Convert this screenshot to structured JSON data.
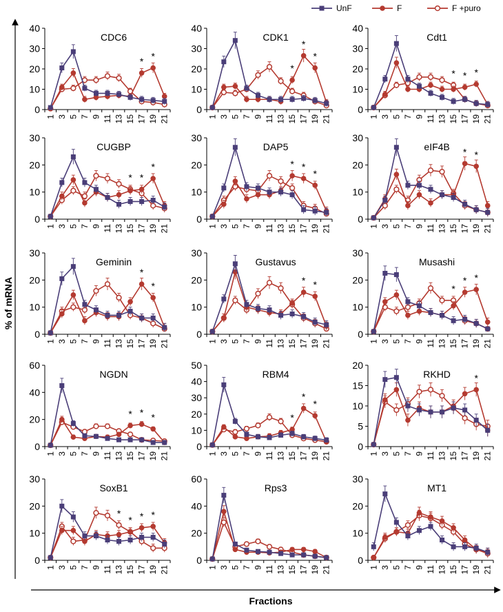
{
  "figure": {
    "ylabel": "% of mRNA",
    "xlabel": "Fractions",
    "legend": [
      {
        "name": "UnF",
        "marker": "square",
        "color": "#4a3e78"
      },
      {
        "name": "F",
        "marker": "circle-filled",
        "color": "#b43a30"
      },
      {
        "name": "F +puro",
        "marker": "circle-open",
        "color": "#b43a30"
      }
    ]
  },
  "chart_data": [
    {
      "type": "line",
      "title": "CDC6",
      "x": [
        1,
        3,
        5,
        7,
        9,
        11,
        13,
        15,
        17,
        19,
        21
      ],
      "ylim": [
        0,
        40
      ],
      "yticks": [
        0,
        10,
        20,
        30,
        40
      ],
      "series": [
        {
          "name": "UnF",
          "values": [
            1,
            20.5,
            28.5,
            10.5,
            8,
            8,
            7.5,
            6,
            5,
            4.5,
            4
          ]
        },
        {
          "name": "F",
          "values": [
            0.5,
            11,
            18,
            5,
            6,
            6.5,
            7,
            6.5,
            18,
            20.5,
            6.5
          ]
        },
        {
          "name": "F +puro",
          "values": [
            0.5,
            10,
            10.5,
            14.5,
            14.5,
            16.5,
            15.5,
            9,
            4,
            3.5,
            2.5
          ]
        }
      ],
      "asterisks": [
        17,
        19
      ]
    },
    {
      "type": "line",
      "title": "CDK1",
      "x": [
        1,
        3,
        5,
        7,
        9,
        11,
        13,
        15,
        17,
        19,
        21
      ],
      "ylim": [
        0,
        40
      ],
      "yticks": [
        0,
        10,
        20,
        30,
        40
      ],
      "series": [
        {
          "name": "UnF",
          "values": [
            1,
            23.5,
            34,
            10.5,
            7,
            5,
            5,
            5,
            5.5,
            4.5,
            3
          ]
        },
        {
          "name": "F",
          "values": [
            1,
            11,
            11.5,
            5,
            5,
            5,
            4,
            14.5,
            26.5,
            20.5,
            3.5
          ]
        },
        {
          "name": "F +puro",
          "values": [
            1,
            8.5,
            8,
            10,
            17,
            21,
            14,
            9,
            7,
            4,
            2
          ]
        }
      ],
      "asterisks": [
        15,
        17,
        19
      ]
    },
    {
      "type": "line",
      "title": "Cdt1",
      "x": [
        1,
        3,
        5,
        7,
        9,
        11,
        13,
        15,
        17,
        19,
        21
      ],
      "ylim": [
        0,
        40
      ],
      "yticks": [
        0,
        10,
        20,
        30,
        40
      ],
      "series": [
        {
          "name": "UnF",
          "values": [
            1,
            15,
            32.5,
            15,
            11.5,
            8,
            6,
            4,
            5,
            3,
            2.5
          ]
        },
        {
          "name": "F",
          "values": [
            1,
            7.5,
            23,
            10,
            10,
            12,
            10,
            10,
            11,
            12.5,
            2.5
          ]
        },
        {
          "name": "F +puro",
          "values": [
            1,
            7,
            12,
            13,
            16,
            16,
            14.5,
            12,
            5,
            3,
            2
          ]
        }
      ],
      "asterisks": [
        15,
        17,
        19
      ]
    },
    {
      "type": "line",
      "title": "CUGBP",
      "x": [
        1,
        3,
        5,
        7,
        9,
        11,
        13,
        15,
        17,
        19,
        21
      ],
      "ylim": [
        0,
        30
      ],
      "yticks": [
        0,
        10,
        20,
        30
      ],
      "series": [
        {
          "name": "UnF",
          "values": [
            1,
            13.5,
            23,
            13.5,
            11,
            8,
            5.5,
            6.5,
            6.5,
            7,
            4.5
          ]
        },
        {
          "name": "F",
          "values": [
            1,
            8.5,
            14.5,
            6,
            10,
            8,
            9,
            10.5,
            11,
            15,
            5
          ]
        },
        {
          "name": "F +puro",
          "values": [
            1,
            7,
            10.5,
            8.5,
            16,
            15,
            13,
            11,
            9.5,
            5,
            4
          ]
        }
      ],
      "asterisks": [
        15,
        17,
        19
      ]
    },
    {
      "type": "line",
      "title": "DAP5",
      "x": [
        1,
        3,
        5,
        7,
        9,
        11,
        13,
        15,
        17,
        19,
        21
      ],
      "ylim": [
        0,
        30
      ],
      "yticks": [
        0,
        10,
        20,
        30
      ],
      "series": [
        {
          "name": "UnF",
          "values": [
            1,
            11.5,
            26.5,
            12,
            11.5,
            10,
            10,
            9,
            3.5,
            3,
            2.5
          ]
        },
        {
          "name": "F",
          "values": [
            1,
            5.5,
            14,
            7.5,
            9,
            9,
            10.5,
            16,
            15,
            12.5,
            3
          ]
        },
        {
          "name": "F +puro",
          "values": [
            1,
            7,
            12,
            11,
            10.5,
            16,
            14,
            11.5,
            5,
            4,
            2
          ]
        }
      ],
      "asterisks": [
        15,
        17,
        19
      ]
    },
    {
      "type": "line",
      "title": "eIF4B",
      "x": [
        1,
        3,
        5,
        7,
        9,
        11,
        13,
        15,
        17,
        19,
        21
      ],
      "ylim": [
        0,
        30
      ],
      "yticks": [
        0,
        10,
        20,
        30
      ],
      "series": [
        {
          "name": "UnF",
          "values": [
            0.5,
            7,
            26.5,
            12.5,
            12.5,
            11,
            9,
            8,
            5.5,
            3.5,
            2.5
          ]
        },
        {
          "name": "F",
          "values": [
            0.5,
            7.5,
            16.5,
            5,
            9,
            6,
            9,
            9,
            20.5,
            19.5,
            5
          ]
        },
        {
          "name": "F +puro",
          "values": [
            0.5,
            5,
            11,
            7,
            14.5,
            18,
            17.5,
            9.5,
            5,
            3.5,
            2.5
          ]
        }
      ],
      "asterisks": [
        17,
        19
      ]
    },
    {
      "type": "line",
      "title": "Geminin",
      "x": [
        1,
        3,
        5,
        7,
        9,
        11,
        13,
        15,
        17,
        19,
        21
      ],
      "ylim": [
        0,
        30
      ],
      "yticks": [
        0,
        10,
        20,
        30
      ],
      "series": [
        {
          "name": "UnF",
          "values": [
            0.5,
            20.5,
            25,
            11,
            9,
            7,
            7,
            8.5,
            6,
            6,
            2.5
          ]
        },
        {
          "name": "F",
          "values": [
            0.5,
            7.5,
            14.5,
            5,
            8,
            6.5,
            6.5,
            12,
            18.5,
            13.5,
            2.5
          ]
        },
        {
          "name": "F +puro",
          "values": [
            0.5,
            8.5,
            10,
            9,
            16,
            18.5,
            13.5,
            7,
            6,
            4,
            2
          ]
        }
      ],
      "asterisks": [
        17,
        19
      ]
    },
    {
      "type": "line",
      "title": "Gustavus",
      "x": [
        1,
        3,
        5,
        7,
        9,
        11,
        13,
        15,
        17,
        19,
        21
      ],
      "ylim": [
        0,
        30
      ],
      "yticks": [
        0,
        10,
        20,
        30
      ],
      "series": [
        {
          "name": "UnF",
          "values": [
            1,
            13,
            26,
            11,
            9.5,
            9,
            7,
            7.5,
            6.5,
            4.5,
            3.5
          ]
        },
        {
          "name": "F",
          "values": [
            1,
            6,
            23,
            10,
            9,
            8,
            7.5,
            11.5,
            15.5,
            14,
            3
          ]
        },
        {
          "name": "F +puro",
          "values": [
            1,
            6,
            12.5,
            9,
            15,
            19,
            17,
            11,
            6,
            4,
            2
          ]
        }
      ],
      "asterisks": [
        17,
        19
      ]
    },
    {
      "type": "line",
      "title": "Musashi",
      "x": [
        1,
        3,
        5,
        7,
        9,
        11,
        13,
        15,
        17,
        19,
        21
      ],
      "ylim": [
        0,
        30
      ],
      "yticks": [
        0,
        10,
        20,
        30
      ],
      "series": [
        {
          "name": "UnF",
          "values": [
            1,
            22.5,
            22,
            12,
            10.5,
            8,
            7,
            5,
            5.5,
            4,
            2
          ]
        },
        {
          "name": "F",
          "values": [
            1,
            12,
            14.5,
            7,
            8.5,
            8,
            7,
            10.5,
            15.5,
            16.5,
            4.5
          ]
        },
        {
          "name": "F +puro",
          "values": [
            1,
            10,
            8.5,
            10,
            11.5,
            17,
            12.5,
            12.5,
            5,
            4,
            2
          ]
        }
      ],
      "asterisks": [
        15,
        17,
        19
      ]
    },
    {
      "type": "line",
      "title": "NGDN",
      "x": [
        1,
        3,
        5,
        7,
        9,
        11,
        13,
        15,
        17,
        19,
        21
      ],
      "ylim": [
        0,
        60
      ],
      "yticks": [
        0,
        20,
        40,
        60
      ],
      "series": [
        {
          "name": "UnF",
          "values": [
            1,
            45,
            17,
            8,
            7.5,
            6,
            5,
            5,
            5,
            3,
            3
          ]
        },
        {
          "name": "F",
          "values": [
            1,
            20,
            7,
            6,
            7.5,
            7,
            9,
            15.5,
            16.5,
            13,
            3
          ]
        },
        {
          "name": "F +puro",
          "values": [
            1,
            18,
            14.5,
            11,
            15,
            15,
            11.5,
            9,
            5,
            4.5,
            4
          ]
        }
      ],
      "asterisks": [
        15,
        17,
        19
      ]
    },
    {
      "type": "line",
      "title": "RBM4",
      "x": [
        1,
        3,
        5,
        7,
        9,
        11,
        13,
        15,
        17,
        19,
        21
      ],
      "ylim": [
        0,
        50
      ],
      "yticks": [
        0,
        10,
        20,
        30,
        40,
        50
      ],
      "series": [
        {
          "name": "UnF",
          "values": [
            1,
            38,
            15.5,
            7.5,
            6,
            5.5,
            7,
            8,
            6,
            5,
            4
          ]
        },
        {
          "name": "F",
          "values": [
            1,
            12,
            6,
            5,
            6,
            6.5,
            8.5,
            10.5,
            23.5,
            19,
            3
          ]
        },
        {
          "name": "F +puro",
          "values": [
            1,
            10.5,
            9,
            11,
            13,
            18,
            15.5,
            7,
            5,
            4,
            3
          ]
        }
      ],
      "asterisks": [
        15,
        17,
        19
      ]
    },
    {
      "type": "line",
      "title": "RKHD",
      "x": [
        1,
        3,
        5,
        7,
        9,
        11,
        13,
        15,
        17,
        19,
        21
      ],
      "ylim": [
        0,
        20
      ],
      "yticks": [
        0,
        5,
        10,
        15,
        20
      ],
      "series": [
        {
          "name": "UnF",
          "values": [
            0.5,
            16.5,
            17,
            10,
            9,
            8.5,
            8.5,
            9.5,
            9,
            6.5,
            4
          ]
        },
        {
          "name": "F",
          "values": [
            0.5,
            11.5,
            14,
            6.5,
            9.5,
            8.5,
            8.5,
            10,
            13,
            14,
            4
          ]
        },
        {
          "name": "F +puro",
          "values": [
            0.5,
            11,
            9,
            10.5,
            13.5,
            14,
            12.5,
            9.5,
            7,
            5.5,
            5
          ]
        }
      ],
      "asterisks": [
        19
      ]
    },
    {
      "type": "line",
      "title": "SoxB1",
      "x": [
        1,
        3,
        5,
        7,
        9,
        11,
        13,
        15,
        17,
        19,
        21
      ],
      "ylim": [
        0,
        30
      ],
      "yticks": [
        0,
        10,
        20,
        30
      ],
      "series": [
        {
          "name": "UnF",
          "values": [
            1,
            20,
            16,
            9,
            9,
            7.5,
            7,
            7.5,
            8.5,
            8.5,
            6
          ]
        },
        {
          "name": "F",
          "values": [
            1,
            11,
            11,
            7,
            9.5,
            9,
            9.5,
            10.5,
            12,
            12.5,
            6.5
          ]
        },
        {
          "name": "F +puro",
          "values": [
            1,
            12.5,
            7,
            7.5,
            17.5,
            16.5,
            13,
            10.5,
            7,
            4.5,
            4.5
          ]
        }
      ],
      "asterisks": [
        13,
        15,
        17,
        19
      ]
    },
    {
      "type": "line",
      "title": "Rps3",
      "x": [
        1,
        3,
        5,
        7,
        9,
        11,
        13,
        15,
        17,
        19,
        21
      ],
      "ylim": [
        0,
        60
      ],
      "yticks": [
        0,
        20,
        40,
        60
      ],
      "series": [
        {
          "name": "UnF",
          "values": [
            1,
            48,
            12,
            7.5,
            6.5,
            6,
            5,
            4,
            4,
            3,
            2
          ]
        },
        {
          "name": "F",
          "values": [
            1,
            36,
            8,
            6,
            6,
            5.5,
            6,
            8,
            8,
            6.5,
            2
          ]
        },
        {
          "name": "F +puro",
          "values": [
            1,
            28,
            10,
            12,
            14,
            10,
            8,
            6,
            4,
            3,
            2
          ]
        }
      ],
      "asterisks": []
    },
    {
      "type": "line",
      "title": "MT1",
      "x": [
        1,
        3,
        5,
        7,
        9,
        11,
        13,
        15,
        17,
        19,
        21
      ],
      "ylim": [
        0,
        30
      ],
      "yticks": [
        0,
        10,
        20,
        30
      ],
      "series": [
        {
          "name": "UnF",
          "values": [
            5,
            24.5,
            14,
            9,
            11,
            12.5,
            7.5,
            5,
            5,
            4.5,
            3
          ]
        },
        {
          "name": "F",
          "values": [
            1,
            8.5,
            10.5,
            10,
            17.5,
            16,
            14.5,
            12,
            7.5,
            4,
            3
          ]
        },
        {
          "name": "F +puro",
          "values": [
            1,
            8,
            10.5,
            13,
            16.5,
            15.5,
            13,
            10.5,
            6,
            4,
            2.5
          ]
        }
      ],
      "asterisks": []
    }
  ]
}
